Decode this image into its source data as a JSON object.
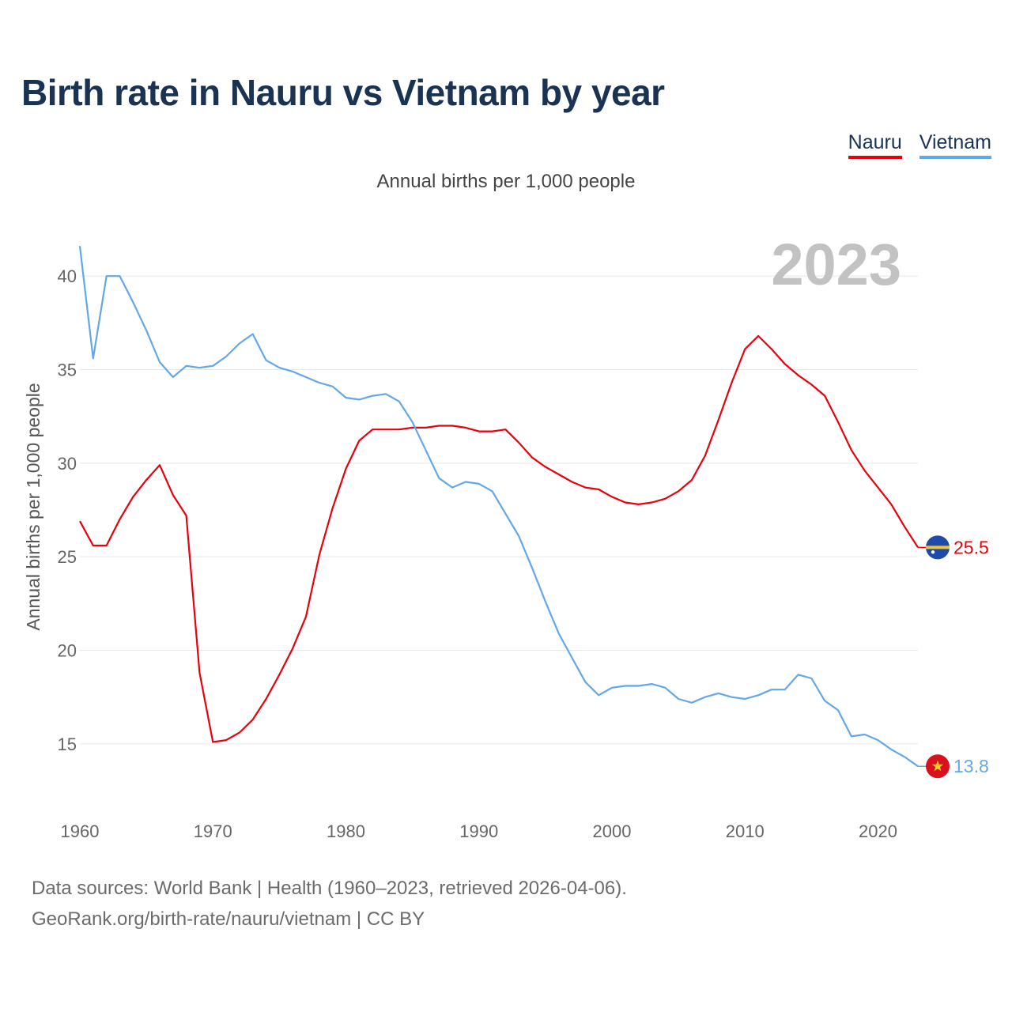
{
  "header": {
    "title": "Birth rate in Nauru vs Vietnam by year"
  },
  "legend": [
    {
      "name": "Nauru",
      "color": "#e8000b"
    },
    {
      "name": "Vietnam",
      "color": "#62a8e8"
    }
  ],
  "footer": {
    "line1": "Data sources: World Bank | Health (1960–2023, retrieved 2026-04-06).",
    "line2": "GeoRank.org/birth-rate/nauru/vietnam | CC BY"
  },
  "chart_data": {
    "type": "line",
    "title": "Birth rate in Nauru vs Vietnam by year",
    "subtitle": "Annual births per 1,000 people",
    "ylabel": "Annual births per 1,000 people",
    "xlabel": "",
    "year_label": "2023",
    "xlim": [
      1960,
      2023
    ],
    "ylim": [
      12.5,
      42.5
    ],
    "x_ticks": [
      1960,
      1970,
      1980,
      1990,
      2000,
      2010,
      2020
    ],
    "y_ticks": [
      15,
      20,
      25,
      30,
      35,
      40
    ],
    "grid": true,
    "legend_position": "top-right",
    "x": [
      1960,
      1961,
      1962,
      1963,
      1964,
      1965,
      1966,
      1967,
      1968,
      1969,
      1970,
      1971,
      1972,
      1973,
      1974,
      1975,
      1976,
      1977,
      1978,
      1979,
      1980,
      1981,
      1982,
      1983,
      1984,
      1985,
      1986,
      1987,
      1988,
      1989,
      1990,
      1991,
      1992,
      1993,
      1994,
      1995,
      1996,
      1997,
      1998,
      1999,
      2000,
      2001,
      2002,
      2003,
      2004,
      2005,
      2006,
      2007,
      2008,
      2009,
      2010,
      2011,
      2012,
      2013,
      2014,
      2015,
      2016,
      2017,
      2018,
      2019,
      2020,
      2021,
      2022,
      2023
    ],
    "series": [
      {
        "name": "Nauru",
        "color": "#e8000b",
        "end_label": "25.5",
        "values": [
          26.9,
          25.6,
          25.6,
          27.0,
          28.2,
          29.1,
          29.9,
          28.3,
          27.2,
          18.8,
          15.1,
          15.2,
          15.6,
          16.3,
          17.4,
          18.7,
          20.1,
          21.8,
          25.1,
          27.6,
          29.7,
          31.2,
          31.8,
          31.8,
          31.8,
          31.9,
          31.9,
          32.0,
          32.0,
          31.9,
          31.7,
          31.7,
          31.8,
          31.1,
          30.3,
          29.8,
          29.4,
          29.0,
          28.7,
          28.6,
          28.2,
          27.9,
          27.8,
          27.9,
          28.1,
          28.5,
          29.1,
          30.4,
          32.3,
          34.3,
          36.1,
          36.8,
          36.1,
          35.3,
          34.7,
          34.2,
          33.6,
          32.2,
          30.7,
          29.6,
          28.7,
          27.8,
          26.6,
          25.5
        ]
      },
      {
        "name": "Vietnam",
        "color": "#62a8e8",
        "end_label": "13.8",
        "values": [
          41.6,
          35.6,
          40.0,
          40.0,
          38.6,
          37.1,
          35.4,
          34.6,
          35.2,
          35.1,
          35.2,
          35.7,
          36.4,
          36.9,
          35.5,
          35.1,
          34.9,
          34.6,
          34.3,
          34.1,
          33.5,
          33.4,
          33.6,
          33.7,
          33.3,
          32.2,
          30.7,
          29.2,
          28.7,
          29.0,
          28.9,
          28.5,
          27.3,
          26.1,
          24.4,
          22.6,
          20.9,
          19.6,
          18.3,
          17.6,
          18.0,
          18.1,
          18.1,
          18.2,
          18.0,
          17.4,
          17.2,
          17.5,
          17.7,
          17.5,
          17.4,
          17.6,
          17.9,
          17.9,
          18.7,
          18.5,
          17.3,
          16.8,
          15.4,
          15.5,
          15.2,
          14.7,
          14.3,
          13.8
        ]
      }
    ]
  }
}
